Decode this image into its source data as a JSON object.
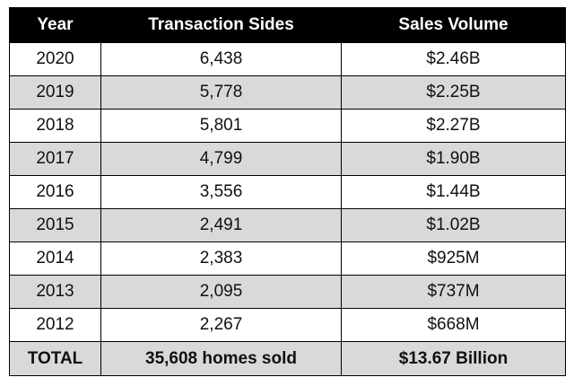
{
  "table": {
    "headers": [
      "Year",
      "Transaction Sides",
      "Sales Volume"
    ],
    "rows": [
      {
        "year": "2020",
        "sides": "6,438",
        "volume": "$2.46B"
      },
      {
        "year": "2019",
        "sides": "5,778",
        "volume": "$2.25B"
      },
      {
        "year": "2018",
        "sides": "5,801",
        "volume": "$2.27B"
      },
      {
        "year": "2017",
        "sides": "4,799",
        "volume": "$1.90B"
      },
      {
        "year": "2016",
        "sides": "3,556",
        "volume": "$1.44B"
      },
      {
        "year": "2015",
        "sides": "2,491",
        "volume": "$1.02B"
      },
      {
        "year": "2014",
        "sides": "2,383",
        "volume": "$925M"
      },
      {
        "year": "2013",
        "sides": "2,095",
        "volume": "$737M"
      },
      {
        "year": "2012",
        "sides": "2,267",
        "volume": "$668M"
      }
    ],
    "total": {
      "label": "TOTAL",
      "sides": "35,608 homes sold",
      "volume": "$13.67 Billion"
    }
  },
  "colors": {
    "header_bg": "#000000",
    "header_text": "#ffffff",
    "stripe": "#d9d9d9",
    "border": "#000000"
  }
}
